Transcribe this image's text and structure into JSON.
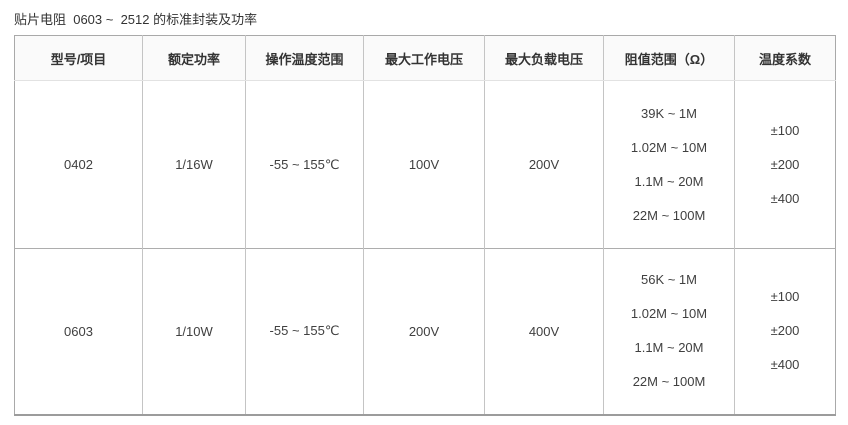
{
  "page": {
    "title": "贴片电阻  0603 ~  2512 的标准封装及功率"
  },
  "table": {
    "headers": [
      "型号/项目",
      "额定功率",
      "操作温度范围",
      "最大工作电压",
      "最大负载电压",
      "阻值范围（Ω）",
      "温度系数"
    ],
    "rows": [
      {
        "model": "0402",
        "rated_power": "1/16W",
        "operating_temp_range": "-55 ~ 155℃",
        "max_working_voltage": "100V",
        "max_overload_voltage": "200V",
        "resistance_ranges": [
          "39K ~ 1M",
          "1.02M ~ 10M",
          "1.1M ~ 20M",
          "22M ~ 100M"
        ],
        "temp_coefficients": [
          "±100",
          "±200",
          "±400"
        ]
      },
      {
        "model": "0603",
        "rated_power": "1/10W",
        "operating_temp_range": "-55 ~ 155℃",
        "max_working_voltage": "200V",
        "max_overload_voltage": "400V",
        "resistance_ranges": [
          "56K ~ 1M",
          "1.02M ~ 10M",
          "1.1M ~ 20M",
          "22M ~ 100M"
        ],
        "temp_coefficients": [
          "±100",
          "±200",
          "±400"
        ]
      }
    ]
  },
  "colors": {
    "outer_border": "#a9a9a9",
    "inner_border": "#c4c4c4",
    "header_divider": "#e2e2e2",
    "row_divider": "#adadad",
    "header_bg": "#fafafa",
    "text": "#404040"
  }
}
